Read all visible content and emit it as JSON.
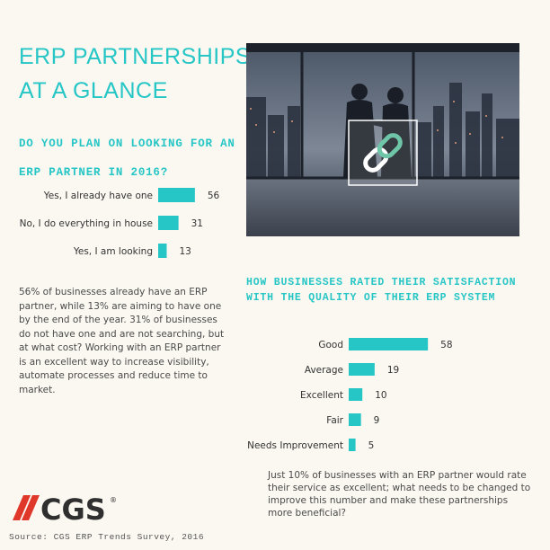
{
  "title": {
    "line1": "ERP PARTNERSHIPS:",
    "line2": "AT A GLANCE"
  },
  "accent_color": "#27c6c6",
  "chart1_question": {
    "line1": "DO YOU PLAN ON LOOKING FOR AN",
    "line2": "ERP PARTNER IN 2016?"
  },
  "chart1_text": "56% of businesses already have an ERP partner, while 13% are aiming to have one by the end of the year. 31% of businesses do not have one and are not searching, but at what cost? Working with an ERP partner is an excellent way to increase visibility, automate processes and reduce time to market.",
  "chart2_question": {
    "line1": "HOW BUSINESSES RATED THEIR SATISFACTION",
    "line2": "WITH THE QUALITY OF THEIR ERP SYSTEM"
  },
  "chart2_text": "Just 10% of businesses with an ERP partner would rate their service as excellent; what needs to be changed to improve this number and make these partnerships more beneficial?",
  "photo": {
    "icon": "chain-link-icon",
    "description_icon": "handshake-silhouette"
  },
  "logo": {
    "text": "CGS",
    "mark": "®",
    "color": "#e0372b"
  },
  "source": "Source: CGS ERP Trends Survey, 2016",
  "chart_data": [
    {
      "type": "bar",
      "orientation": "horizontal",
      "categories": [
        "Yes, I already have one",
        "No, I do everything in house",
        "Yes, I am looking"
      ],
      "values": [
        56,
        31,
        13
      ],
      "xlim": [
        0,
        100
      ],
      "color": "#27c6c6"
    },
    {
      "type": "bar",
      "orientation": "horizontal",
      "categories": [
        "Good",
        "Average",
        "Excellent",
        "Fair",
        "Needs Improvement"
      ],
      "values": [
        58,
        19,
        10,
        9,
        5
      ],
      "xlim": [
        0,
        100
      ],
      "color": "#27c6c6"
    }
  ]
}
